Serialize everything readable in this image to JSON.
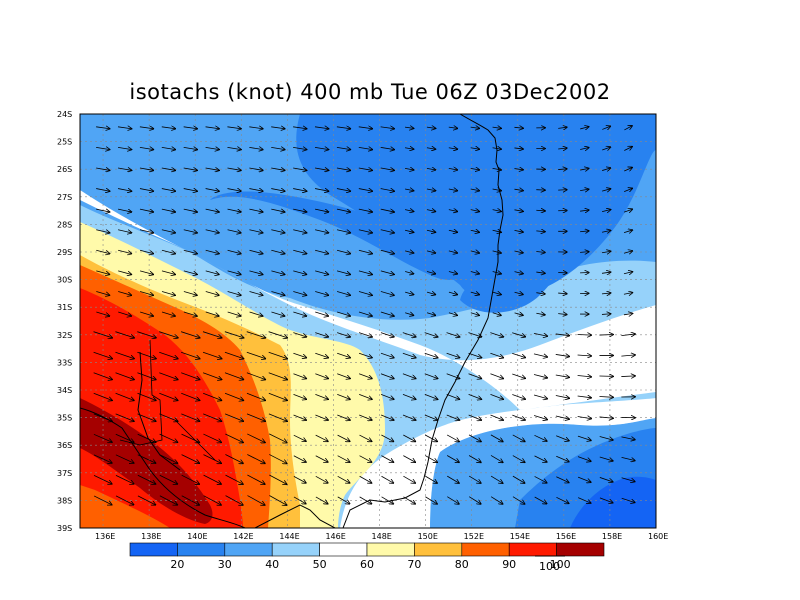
{
  "title": "isotachs (knot) 400 mb Tue 06Z 03Dec2002",
  "map": {
    "lon_range": [
      135,
      160
    ],
    "lat_range": [
      -39,
      -24
    ],
    "lon_ticks": [
      {
        "v": 136,
        "label": "136E"
      },
      {
        "v": 138,
        "label": "138E"
      },
      {
        "v": 140,
        "label": "140E"
      },
      {
        "v": 142,
        "label": "142E"
      },
      {
        "v": 144,
        "label": "144E"
      },
      {
        "v": 146,
        "label": "146E"
      },
      {
        "v": 148,
        "label": "148E"
      },
      {
        "v": 150,
        "label": "150E"
      },
      {
        "v": 152,
        "label": "152E"
      },
      {
        "v": 154,
        "label": "154E"
      },
      {
        "v": 156,
        "label": "156E"
      },
      {
        "v": 158,
        "label": "158E"
      },
      {
        "v": 160,
        "label": "160E"
      }
    ],
    "lat_ticks": [
      {
        "v": -24,
        "label": "24S"
      },
      {
        "v": -25,
        "label": "25S"
      },
      {
        "v": -26,
        "label": "26S"
      },
      {
        "v": -27,
        "label": "27S"
      },
      {
        "v": -28,
        "label": "28S"
      },
      {
        "v": -29,
        "label": "29S"
      },
      {
        "v": -30,
        "label": "30S"
      },
      {
        "v": -31,
        "label": "31S"
      },
      {
        "v": -32,
        "label": "32S"
      },
      {
        "v": -33,
        "label": "33S"
      },
      {
        "v": -34,
        "label": "34S"
      },
      {
        "v": -35,
        "label": "35S"
      },
      {
        "v": -36,
        "label": "36S"
      },
      {
        "v": -37,
        "label": "37S"
      },
      {
        "v": -38,
        "label": "38S"
      },
      {
        "v": -39,
        "label": "39S"
      }
    ],
    "grid": "dashed"
  },
  "colorbar": {
    "colors": [
      "#1464f4",
      "#2882f0",
      "#50a5f5",
      "#96d2fa",
      "#ffffff",
      "#fffaaa",
      "#ffc03c",
      "#ff6000",
      "#ff1a00",
      "#a50000"
    ],
    "labels": [
      "20",
      "30",
      "40",
      "50",
      "60",
      "70",
      "80",
      "90",
      "100"
    ]
  },
  "vector_reference": {
    "label": "100"
  }
}
